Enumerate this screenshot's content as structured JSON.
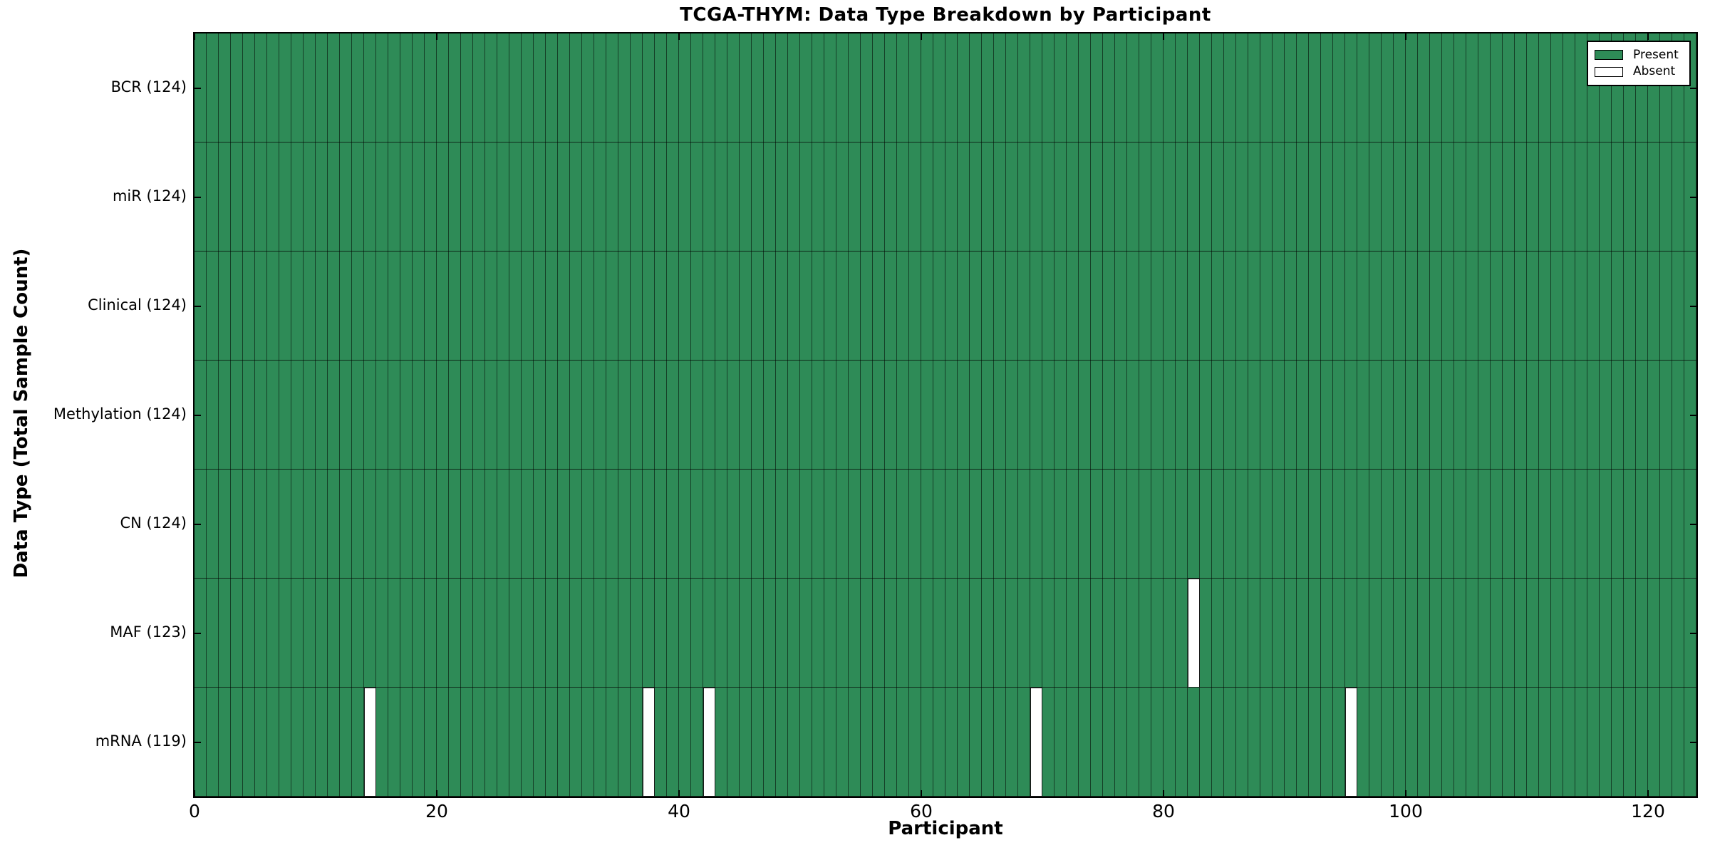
{
  "chart_data": {
    "type": "heatmap",
    "title": "TCGA-THYM: Data Type Breakdown by Participant",
    "xlabel": "Participant",
    "ylabel": "Data Type (Total Sample Count)",
    "n_participants": 124,
    "xlim": [
      0,
      124
    ],
    "xticks": [
      0,
      20,
      40,
      60,
      80,
      100,
      120
    ],
    "rows": [
      {
        "label": "BCR (124)",
        "data_type": "BCR",
        "present_count": 124,
        "absent_participants": []
      },
      {
        "label": "miR (124)",
        "data_type": "miR",
        "present_count": 124,
        "absent_participants": []
      },
      {
        "label": "Clinical (124)",
        "data_type": "Clinical",
        "present_count": 124,
        "absent_participants": []
      },
      {
        "label": "Methylation (124)",
        "data_type": "Methylation",
        "present_count": 124,
        "absent_participants": []
      },
      {
        "label": "CN (124)",
        "data_type": "CN",
        "present_count": 124,
        "absent_participants": []
      },
      {
        "label": "MAF (123)",
        "data_type": "MAF",
        "present_count": 123,
        "absent_participants": [
          82
        ]
      },
      {
        "label": "mRNA (119)",
        "data_type": "mRNA",
        "present_count": 119,
        "absent_participants": [
          14,
          37,
          42,
          69,
          95
        ]
      }
    ],
    "legend": [
      {
        "label": "Present",
        "color": "#2e8b57"
      },
      {
        "label": "Absent",
        "color": "#ffffff"
      }
    ],
    "colors": {
      "present": "#2e8b57",
      "absent": "#ffffff",
      "edge": "#000000"
    },
    "legend_position": "upper right",
    "grid": true
  }
}
